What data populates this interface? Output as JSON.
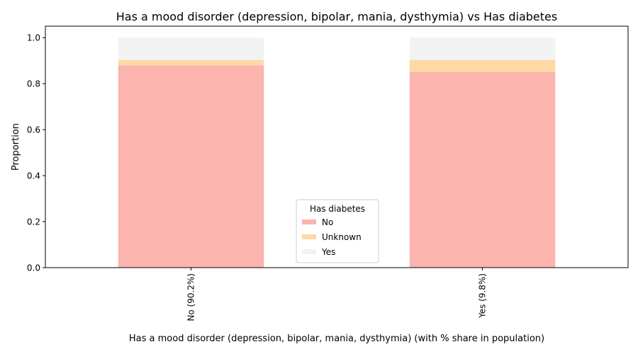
{
  "chart_data": {
    "type": "bar",
    "stacked": true,
    "title": "Has a mood disorder (depression, bipolar, mania, dysthymia) vs Has diabetes",
    "xlabel": "Has a mood disorder (depression, bipolar, mania, dysthymia) (with % share in population)",
    "ylabel": "Proportion",
    "categories": [
      "No (90.2%)",
      "Yes (9.8%)"
    ],
    "yticks": [
      "0.0",
      "0.2",
      "0.4",
      "0.6",
      "0.8",
      "1.0"
    ],
    "ylim": [
      0,
      1.05
    ],
    "grid": false,
    "legend": {
      "title": "Has diabetes",
      "position": "bottom-center"
    },
    "series": [
      {
        "name": "No",
        "color": "#fbb4ae",
        "values": [
          0.88,
          0.851
        ]
      },
      {
        "name": "Unknown",
        "color": "#fed9a6",
        "values": [
          0.023,
          0.052
        ]
      },
      {
        "name": "Yes",
        "color": "#f2f2f2",
        "values": [
          0.097,
          0.097
        ]
      }
    ]
  }
}
